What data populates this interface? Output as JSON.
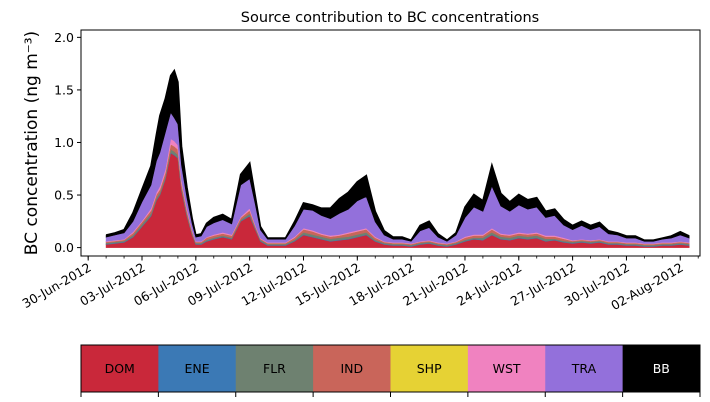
{
  "chart_data": {
    "type": "area",
    "title": "Source contribution to BC concentrations",
    "ylabel": "BC concentration (ng m⁻³)",
    "xlabel": "",
    "ylim": [
      -0.08,
      2.07
    ],
    "xlim_days": [
      -0.4,
      34.1
    ],
    "yticks": [
      0.0,
      0.5,
      1.0,
      1.5,
      2.0
    ],
    "ytick_labels": [
      "0.0",
      "0.5",
      "1.0",
      "1.5",
      "2.0"
    ],
    "xtick_days": [
      0,
      3,
      6,
      9,
      12,
      15,
      18,
      21,
      24,
      27,
      30,
      33
    ],
    "xtick_labels": [
      "30-Jun-2012",
      "03-Jul-2012",
      "06-Jul-2012",
      "09-Jul-2012",
      "12-Jul-2012",
      "15-Jul-2012",
      "18-Jul-2012",
      "21-Jul-2012",
      "24-Jul-2012",
      "27-Jul-2012",
      "30-Jul-2012",
      "02-Aug-2012"
    ],
    "x_days": [
      1.0,
      1.5,
      2.0,
      2.5,
      3.0,
      3.5,
      3.8,
      4.0,
      4.3,
      4.6,
      4.8,
      5.0,
      5.2,
      5.5,
      5.8,
      6.0,
      6.3,
      6.6,
      7.0,
      7.5,
      8.0,
      8.5,
      9.0,
      9.3,
      9.6,
      10.0,
      10.5,
      11.0,
      11.5,
      12.0,
      12.5,
      13.0,
      13.5,
      14.0,
      14.5,
      15.0,
      15.5,
      16.0,
      16.5,
      17.0,
      17.5,
      18.0,
      18.5,
      19.0,
      19.5,
      20.0,
      20.5,
      21.0,
      21.5,
      22.0,
      22.5,
      23.0,
      23.5,
      24.0,
      24.5,
      25.0,
      25.5,
      26.0,
      26.5,
      27.0,
      27.5,
      28.0,
      28.5,
      29.0,
      29.5,
      30.0,
      30.5,
      31.0,
      31.5,
      32.0,
      32.5,
      33.0,
      33.5
    ],
    "series": [
      {
        "name": "DOM",
        "color": "#c9283a",
        "values": [
          0.03,
          0.04,
          0.05,
          0.1,
          0.2,
          0.3,
          0.45,
          0.5,
          0.65,
          0.9,
          0.88,
          0.85,
          0.55,
          0.3,
          0.12,
          0.03,
          0.03,
          0.06,
          0.08,
          0.1,
          0.08,
          0.25,
          0.3,
          0.18,
          0.06,
          0.02,
          0.02,
          0.02,
          0.06,
          0.12,
          0.1,
          0.08,
          0.06,
          0.07,
          0.08,
          0.1,
          0.12,
          0.06,
          0.03,
          0.02,
          0.02,
          0.01,
          0.03,
          0.04,
          0.02,
          0.01,
          0.03,
          0.06,
          0.08,
          0.07,
          0.12,
          0.08,
          0.07,
          0.09,
          0.08,
          0.09,
          0.06,
          0.07,
          0.05,
          0.04,
          0.05,
          0.04,
          0.05,
          0.03,
          0.03,
          0.02,
          0.02,
          0.01,
          0.01,
          0.02,
          0.02,
          0.03,
          0.02
        ]
      },
      {
        "name": "ENE",
        "color": "#3b79b5",
        "values": [
          0.005,
          0.005,
          0.005,
          0.005,
          0.005,
          0.005,
          0.005,
          0.005,
          0.005,
          0.005,
          0.005,
          0.005,
          0.005,
          0.005,
          0.005,
          0.005,
          0.005,
          0.005,
          0.005,
          0.005,
          0.005,
          0.005,
          0.005,
          0.005,
          0.005,
          0.005,
          0.005,
          0.005,
          0.005,
          0.005,
          0.005,
          0.005,
          0.005,
          0.005,
          0.005,
          0.005,
          0.005,
          0.005,
          0.005,
          0.005,
          0.005,
          0.005,
          0.005,
          0.005,
          0.005,
          0.005,
          0.005,
          0.005,
          0.005,
          0.005,
          0.005,
          0.005,
          0.005,
          0.005,
          0.005,
          0.005,
          0.005,
          0.005,
          0.005,
          0.005,
          0.005,
          0.005,
          0.005,
          0.005,
          0.005,
          0.005,
          0.005,
          0.005,
          0.005,
          0.005,
          0.005,
          0.005,
          0.005
        ]
      },
      {
        "name": "FLR",
        "color": "#6e8170",
        "values": [
          0.01,
          0.01,
          0.01,
          0.015,
          0.02,
          0.02,
          0.02,
          0.02,
          0.02,
          0.03,
          0.03,
          0.03,
          0.02,
          0.02,
          0.01,
          0.01,
          0.01,
          0.01,
          0.01,
          0.01,
          0.01,
          0.01,
          0.02,
          0.01,
          0.01,
          0.01,
          0.01,
          0.01,
          0.01,
          0.02,
          0.02,
          0.02,
          0.02,
          0.02,
          0.02,
          0.02,
          0.02,
          0.01,
          0.01,
          0.01,
          0.01,
          0.01,
          0.01,
          0.01,
          0.01,
          0.01,
          0.01,
          0.01,
          0.01,
          0.02,
          0.02,
          0.02,
          0.02,
          0.02,
          0.02,
          0.02,
          0.02,
          0.01,
          0.01,
          0.01,
          0.01,
          0.01,
          0.01,
          0.01,
          0.01,
          0.01,
          0.01,
          0.01,
          0.01,
          0.01,
          0.01,
          0.01,
          0.01
        ]
      },
      {
        "name": "IND",
        "color": "#c9655a",
        "values": [
          0.01,
          0.01,
          0.01,
          0.02,
          0.02,
          0.03,
          0.03,
          0.03,
          0.04,
          0.05,
          0.05,
          0.05,
          0.04,
          0.03,
          0.02,
          0.01,
          0.01,
          0.02,
          0.02,
          0.02,
          0.02,
          0.02,
          0.03,
          0.02,
          0.01,
          0.01,
          0.01,
          0.01,
          0.02,
          0.03,
          0.03,
          0.02,
          0.02,
          0.02,
          0.03,
          0.03,
          0.03,
          0.02,
          0.01,
          0.01,
          0.01,
          0.01,
          0.01,
          0.01,
          0.01,
          0.01,
          0.01,
          0.02,
          0.02,
          0.02,
          0.03,
          0.02,
          0.02,
          0.02,
          0.02,
          0.02,
          0.02,
          0.02,
          0.02,
          0.01,
          0.01,
          0.01,
          0.01,
          0.01,
          0.01,
          0.01,
          0.01,
          0.01,
          0.01,
          0.01,
          0.01,
          0.01,
          0.01
        ]
      },
      {
        "name": "SHP",
        "color": "#e6d234",
        "values": [
          0.0,
          0.0,
          0.0,
          0.0,
          0.0,
          0.0,
          0.0,
          0.0,
          0.0,
          0.0,
          0.0,
          0.0,
          0.0,
          0.0,
          0.0,
          0.0,
          0.0,
          0.0,
          0.0,
          0.0,
          0.0,
          0.0,
          0.0,
          0.0,
          0.0,
          0.0,
          0.0,
          0.0,
          0.0,
          0.0,
          0.0,
          0.0,
          0.0,
          0.0,
          0.0,
          0.0,
          0.0,
          0.0,
          0.0,
          0.0,
          0.0,
          0.0,
          0.0,
          0.0,
          0.0,
          0.0,
          0.0,
          0.0,
          0.0,
          0.0,
          0.0,
          0.0,
          0.0,
          0.0,
          0.0,
          0.0,
          0.0,
          0.0,
          0.0,
          0.0,
          0.0,
          0.0,
          0.0,
          0.0,
          0.0,
          0.0,
          0.0,
          0.0,
          0.0,
          0.0,
          0.0,
          0.0,
          0.0
        ]
      },
      {
        "name": "WST",
        "color": "#f082c0",
        "values": [
          0.005,
          0.005,
          0.005,
          0.01,
          0.01,
          0.02,
          0.02,
          0.03,
          0.03,
          0.05,
          0.05,
          0.04,
          0.03,
          0.02,
          0.01,
          0.005,
          0.005,
          0.005,
          0.01,
          0.01,
          0.01,
          0.01,
          0.02,
          0.01,
          0.005,
          0.005,
          0.005,
          0.005,
          0.01,
          0.01,
          0.01,
          0.01,
          0.01,
          0.01,
          0.01,
          0.01,
          0.01,
          0.01,
          0.005,
          0.005,
          0.005,
          0.005,
          0.005,
          0.005,
          0.005,
          0.005,
          0.005,
          0.01,
          0.01,
          0.01,
          0.01,
          0.01,
          0.01,
          0.01,
          0.01,
          0.01,
          0.01,
          0.01,
          0.01,
          0.005,
          0.005,
          0.005,
          0.005,
          0.005,
          0.005,
          0.005,
          0.005,
          0.005,
          0.005,
          0.005,
          0.005,
          0.005,
          0.005
        ]
      },
      {
        "name": "TRA",
        "color": "#9370db",
        "values": [
          0.04,
          0.05,
          0.06,
          0.1,
          0.18,
          0.22,
          0.3,
          0.32,
          0.35,
          0.25,
          0.22,
          0.2,
          0.14,
          0.1,
          0.06,
          0.04,
          0.05,
          0.1,
          0.11,
          0.12,
          0.1,
          0.3,
          0.28,
          0.2,
          0.08,
          0.03,
          0.03,
          0.03,
          0.1,
          0.18,
          0.19,
          0.17,
          0.16,
          0.2,
          0.22,
          0.28,
          0.3,
          0.14,
          0.06,
          0.03,
          0.03,
          0.02,
          0.1,
          0.12,
          0.05,
          0.02,
          0.06,
          0.18,
          0.26,
          0.22,
          0.4,
          0.26,
          0.22,
          0.26,
          0.23,
          0.24,
          0.17,
          0.19,
          0.12,
          0.1,
          0.13,
          0.1,
          0.12,
          0.07,
          0.06,
          0.04,
          0.04,
          0.02,
          0.02,
          0.03,
          0.04,
          0.06,
          0.04
        ]
      },
      {
        "name": "BB",
        "color": "#000000",
        "values": [
          0.02,
          0.02,
          0.03,
          0.08,
          0.12,
          0.18,
          0.25,
          0.35,
          0.32,
          0.35,
          0.45,
          0.4,
          0.18,
          0.1,
          0.05,
          0.02,
          0.02,
          0.03,
          0.05,
          0.05,
          0.04,
          0.1,
          0.15,
          0.08,
          0.03,
          0.01,
          0.01,
          0.01,
          0.04,
          0.06,
          0.05,
          0.07,
          0.1,
          0.14,
          0.16,
          0.18,
          0.2,
          0.1,
          0.04,
          0.02,
          0.02,
          0.01,
          0.05,
          0.06,
          0.03,
          0.01,
          0.02,
          0.1,
          0.12,
          0.1,
          0.2,
          0.12,
          0.09,
          0.1,
          0.09,
          0.09,
          0.06,
          0.06,
          0.05,
          0.04,
          0.04,
          0.04,
          0.04,
          0.03,
          0.02,
          0.02,
          0.02,
          0.01,
          0.01,
          0.01,
          0.02,
          0.03,
          0.02
        ]
      }
    ]
  },
  "colorbar": {
    "labels": [
      "DOM",
      "ENE",
      "FLR",
      "IND",
      "SHP",
      "WST",
      "TRA",
      "BB"
    ],
    "colors": [
      "#c9283a",
      "#3b79b5",
      "#6e8170",
      "#c9655a",
      "#e6d234",
      "#f082c0",
      "#9370db",
      "#000000"
    ]
  }
}
